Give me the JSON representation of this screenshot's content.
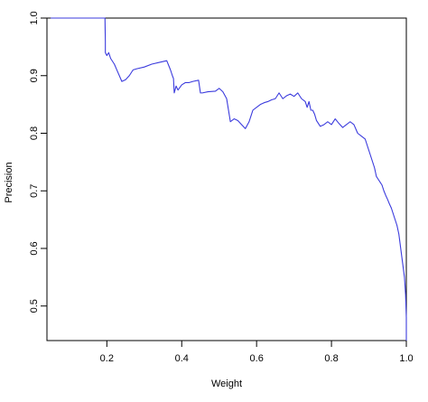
{
  "chart_data": {
    "type": "line",
    "title": "",
    "xlabel": "Weight",
    "ylabel": "Precision",
    "xlim": [
      0.04,
      1.0
    ],
    "ylim": [
      0.44,
      1.0
    ],
    "x_ticks": [
      0.2,
      0.4,
      0.6,
      0.8,
      1.0
    ],
    "x_tick_labels": [
      "0.2",
      "0.4",
      "0.6",
      "0.8",
      "1.0"
    ],
    "y_ticks": [
      0.5,
      0.6,
      0.7,
      0.8,
      0.9,
      1.0
    ],
    "y_tick_labels": [
      "0.5",
      "0.6",
      "0.7",
      "0.8",
      "0.9",
      "1.0"
    ],
    "grid": false,
    "series": [
      {
        "color": "#3b3bdd",
        "x": [
          0.05,
          0.195,
          0.196,
          0.196,
          0.2,
          0.205,
          0.21,
          0.22,
          0.23,
          0.24,
          0.25,
          0.26,
          0.27,
          0.28,
          0.3,
          0.32,
          0.34,
          0.36,
          0.37,
          0.375,
          0.378,
          0.38,
          0.385,
          0.39,
          0.4,
          0.41,
          0.42,
          0.43,
          0.445,
          0.45,
          0.455,
          0.47,
          0.49,
          0.5,
          0.51,
          0.52,
          0.53,
          0.54,
          0.55,
          0.56,
          0.57,
          0.58,
          0.59,
          0.6,
          0.61,
          0.62,
          0.63,
          0.64,
          0.65,
          0.66,
          0.67,
          0.68,
          0.69,
          0.7,
          0.71,
          0.72,
          0.73,
          0.735,
          0.74,
          0.745,
          0.75,
          0.755,
          0.76,
          0.77,
          0.78,
          0.79,
          0.8,
          0.81,
          0.82,
          0.83,
          0.84,
          0.85,
          0.86,
          0.87,
          0.88,
          0.89,
          0.9,
          0.91,
          0.915,
          0.92,
          0.925,
          0.93,
          0.935,
          0.94,
          0.945,
          0.95,
          0.955,
          0.96,
          0.965,
          0.97,
          0.975,
          0.98,
          0.985,
          0.99,
          0.995,
          0.998,
          1.0,
          1.0
        ],
        "y": [
          1.0,
          1.0,
          0.96,
          0.94,
          0.935,
          0.94,
          0.93,
          0.92,
          0.905,
          0.89,
          0.893,
          0.9,
          0.91,
          0.912,
          0.915,
          0.92,
          0.923,
          0.926,
          0.91,
          0.9,
          0.895,
          0.87,
          0.882,
          0.875,
          0.884,
          0.888,
          0.888,
          0.89,
          0.892,
          0.87,
          0.87,
          0.872,
          0.873,
          0.878,
          0.872,
          0.86,
          0.82,
          0.825,
          0.822,
          0.815,
          0.808,
          0.82,
          0.84,
          0.845,
          0.85,
          0.853,
          0.855,
          0.858,
          0.86,
          0.87,
          0.86,
          0.865,
          0.868,
          0.864,
          0.87,
          0.86,
          0.855,
          0.845,
          0.855,
          0.84,
          0.84,
          0.833,
          0.822,
          0.812,
          0.815,
          0.82,
          0.815,
          0.825,
          0.817,
          0.81,
          0.815,
          0.82,
          0.815,
          0.8,
          0.795,
          0.79,
          0.77,
          0.75,
          0.74,
          0.725,
          0.72,
          0.715,
          0.71,
          0.7,
          0.692,
          0.685,
          0.677,
          0.67,
          0.66,
          0.65,
          0.64,
          0.625,
          0.6,
          0.575,
          0.55,
          0.52,
          0.48,
          0.44
        ]
      }
    ]
  }
}
